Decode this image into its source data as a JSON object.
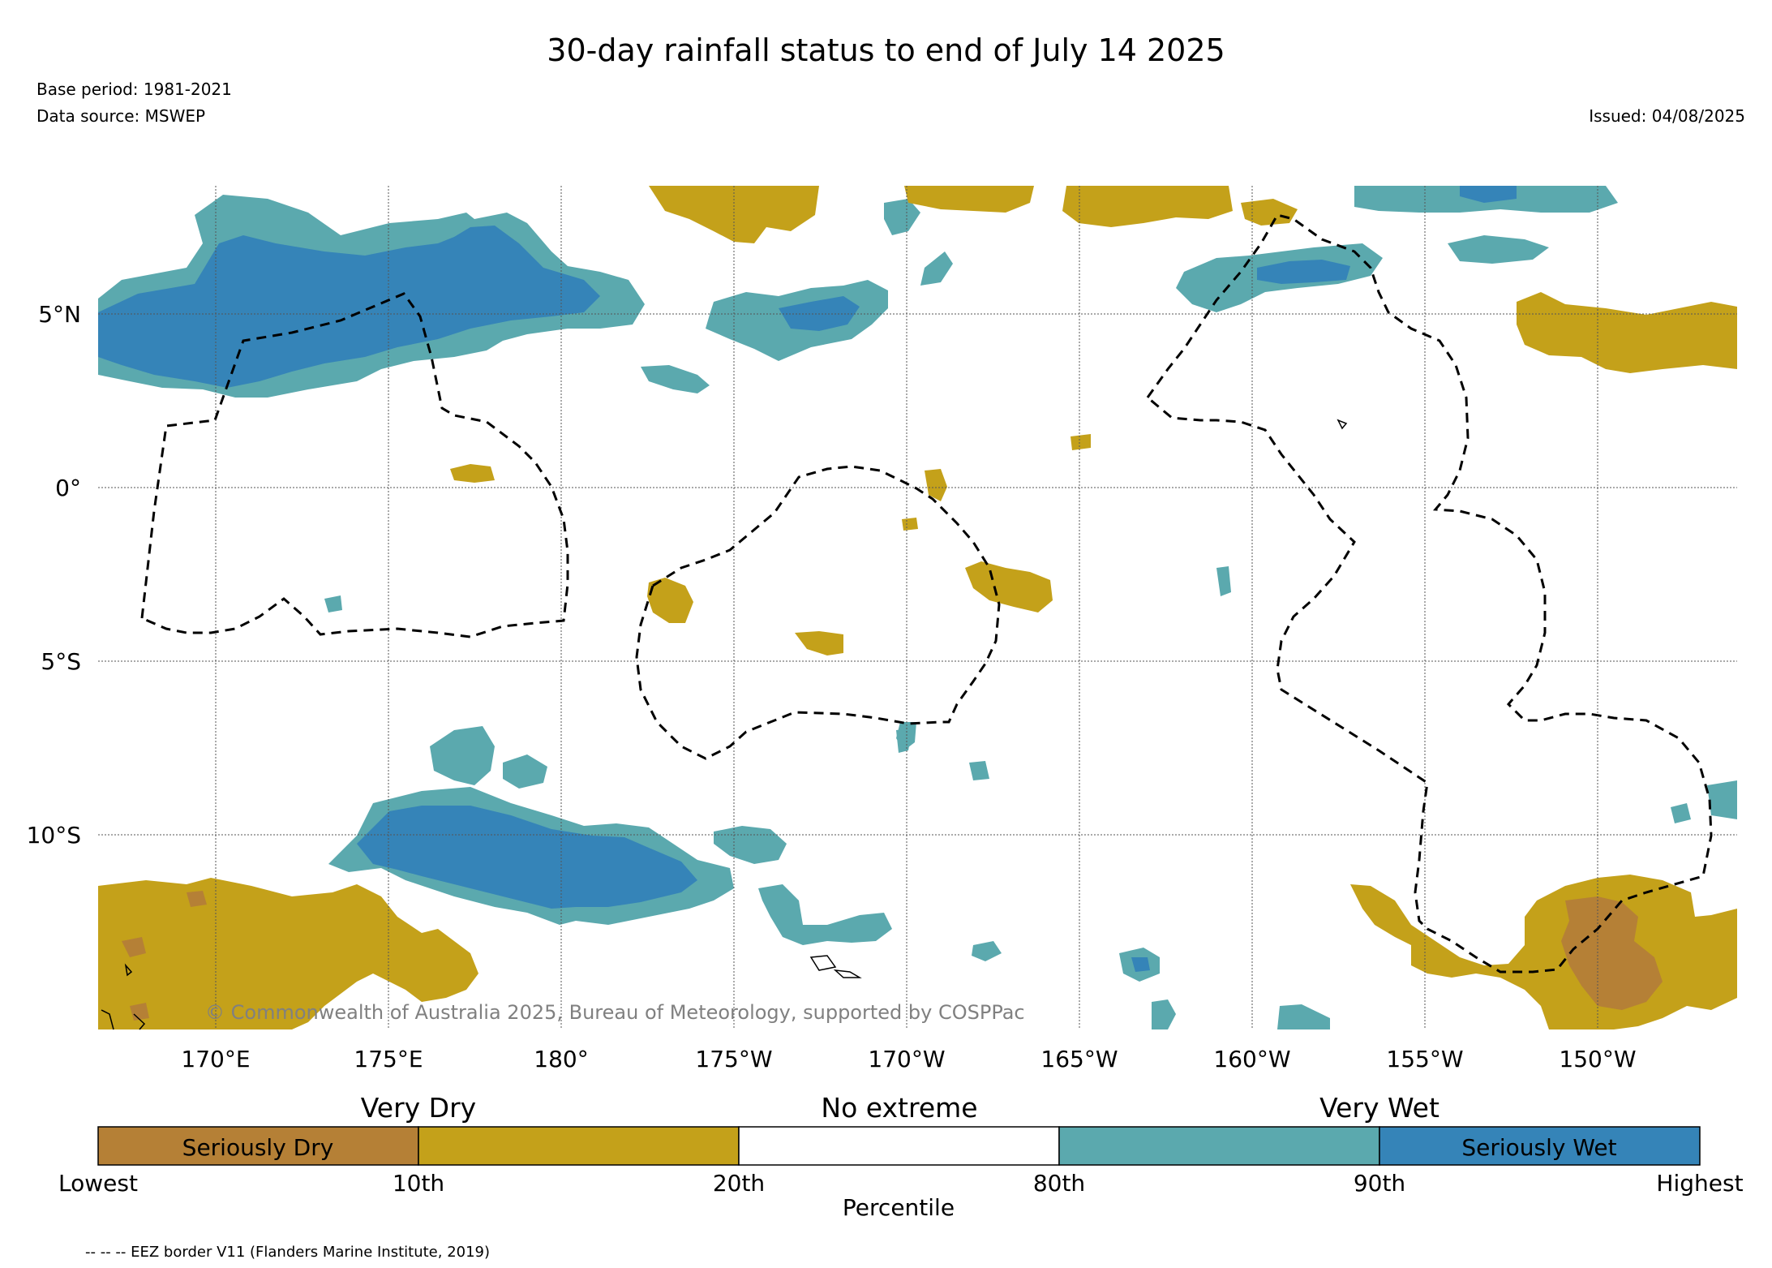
{
  "header": {
    "title": "30-day rainfall status to end of July 14 2025",
    "base_period": "Base period: 1981-2021",
    "data_source": "Data source: MSWEP",
    "issued": "Issued: 04/08/2025"
  },
  "map": {
    "copyright": "© Commonwealth of Australia 2025, Bureau of Meteorology, supported by COSPPac",
    "lat_labels": [
      "5°N",
      "0°",
      "5°S",
      "10°S"
    ],
    "lon_labels": [
      "170°E",
      "175°E",
      "180°",
      "175°W",
      "170°W",
      "165°W",
      "160°W",
      "155°W",
      "150°W"
    ]
  },
  "legend": {
    "categories": [
      "Very Dry",
      "No extreme",
      "Very Wet"
    ],
    "segments": [
      {
        "label": "Seriously Dry",
        "color": "#b58036"
      },
      {
        "label": "",
        "color": "#c4a11a"
      },
      {
        "label": "",
        "color": "#ffffff"
      },
      {
        "label": "",
        "color": "#5ba9ae"
      },
      {
        "label": "Seriously Wet",
        "color": "#3584b8"
      }
    ],
    "ticks": [
      "Lowest",
      "10th",
      "20th",
      "80th",
      "90th",
      "Highest"
    ],
    "axis_label": "Percentile"
  },
  "footnote": "-- -- -- EEZ border V11 (Flanders Marine Institute, 2019)",
  "colors": {
    "seriously_dry": "#b58036",
    "very_dry": "#c4a11a",
    "very_wet": "#5ba9ae",
    "seriously_wet": "#3584b8"
  }
}
